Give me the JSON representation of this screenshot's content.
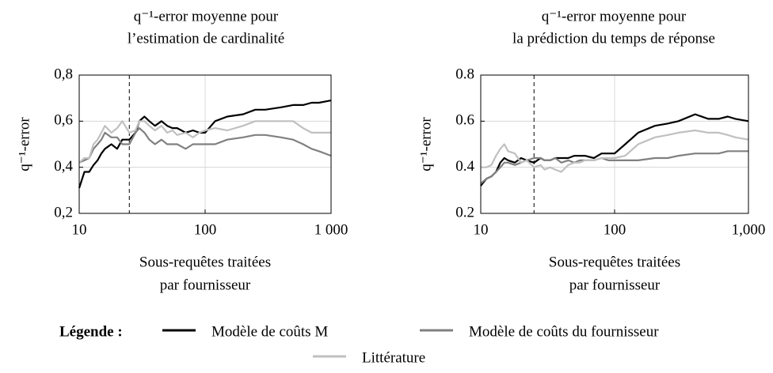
{
  "chart_data": [
    {
      "type": "line",
      "title": [
        "q⁻¹-error moyenne pour",
        "l’estimation de cardinalité"
      ],
      "ylabel": "q⁻¹-error",
      "xlabel": [
        "Sous-requêtes traitées",
        "par fournisseur"
      ],
      "legend_title": "Légende :",
      "xscale": "log",
      "grid": true,
      "vline": 25,
      "xlim": [
        10,
        1000
      ],
      "xticks": [
        10,
        100,
        {
          "value": 1000,
          "label": "1 000"
        }
      ],
      "ylim": [
        0.2,
        0.8
      ],
      "yticks": [
        {
          "value": 0.2,
          "label": "0,2"
        },
        {
          "value": 0.4,
          "label": "0,4"
        },
        {
          "value": 0.6,
          "label": "0,6"
        },
        {
          "value": 0.8,
          "label": "0,8"
        }
      ],
      "x": [
        10,
        11,
        12,
        13,
        14,
        15,
        16,
        18,
        20,
        22,
        25,
        28,
        30,
        33,
        36,
        40,
        45,
        50,
        55,
        60,
        70,
        80,
        90,
        100,
        120,
        150,
        200,
        250,
        300,
        400,
        500,
        600,
        700,
        800,
        1000
      ],
      "series": [
        {
          "name": "Modèle de coûts M",
          "color": "#000000",
          "values": [
            0.31,
            0.38,
            0.38,
            0.41,
            0.43,
            0.46,
            0.48,
            0.5,
            0.48,
            0.52,
            0.52,
            0.55,
            0.6,
            0.62,
            0.6,
            0.58,
            0.6,
            0.58,
            0.57,
            0.57,
            0.55,
            0.56,
            0.55,
            0.55,
            0.6,
            0.62,
            0.63,
            0.65,
            0.65,
            0.66,
            0.67,
            0.67,
            0.68,
            0.68,
            0.69
          ]
        },
        {
          "name": "Modèle de coûts du fournisseur",
          "color": "#808080",
          "values": [
            0.42,
            0.43,
            0.44,
            0.48,
            0.5,
            0.52,
            0.55,
            0.53,
            0.53,
            0.5,
            0.5,
            0.55,
            0.57,
            0.55,
            0.52,
            0.5,
            0.52,
            0.5,
            0.5,
            0.5,
            0.48,
            0.5,
            0.5,
            0.5,
            0.5,
            0.52,
            0.53,
            0.54,
            0.54,
            0.53,
            0.52,
            0.5,
            0.48,
            0.47,
            0.45
          ]
        },
        {
          "name": "Littérature",
          "color": "#c0c0c0",
          "values": [
            0.42,
            0.44,
            0.44,
            0.5,
            0.52,
            0.55,
            0.58,
            0.55,
            0.57,
            0.6,
            0.55,
            0.56,
            0.6,
            0.6,
            0.58,
            0.56,
            0.58,
            0.55,
            0.56,
            0.54,
            0.55,
            0.53,
            0.55,
            0.56,
            0.57,
            0.56,
            0.58,
            0.6,
            0.6,
            0.6,
            0.6,
            0.57,
            0.55,
            0.55,
            0.55
          ]
        }
      ]
    },
    {
      "type": "line",
      "title": [
        "q⁻¹-error moyenne pour",
        "la prédiction du temps de réponse"
      ],
      "ylabel": "q⁻¹-error",
      "xlabel": [
        "Sous-requêtes traitées",
        "par fournisseur"
      ],
      "xscale": "log",
      "grid": true,
      "vline": 25,
      "xlim": [
        10,
        1000
      ],
      "xticks": [
        10,
        100,
        {
          "value": 1000,
          "label": "1,000"
        }
      ],
      "ylim": [
        0.2,
        0.8
      ],
      "yticks": [
        0.2,
        0.4,
        0.6,
        0.8
      ],
      "x": [
        10,
        11,
        12,
        13,
        14,
        15,
        16,
        18,
        20,
        22,
        25,
        28,
        30,
        33,
        36,
        40,
        45,
        50,
        55,
        60,
        70,
        80,
        90,
        100,
        120,
        150,
        200,
        250,
        300,
        400,
        500,
        600,
        700,
        800,
        1000
      ],
      "series": [
        {
          "color": "#000000",
          "values": [
            0.32,
            0.35,
            0.36,
            0.38,
            0.42,
            0.44,
            0.43,
            0.42,
            0.44,
            0.43,
            0.42,
            0.44,
            0.43,
            0.43,
            0.44,
            0.44,
            0.44,
            0.45,
            0.45,
            0.45,
            0.44,
            0.46,
            0.46,
            0.46,
            0.5,
            0.55,
            0.58,
            0.59,
            0.6,
            0.63,
            0.61,
            0.61,
            0.62,
            0.61,
            0.6
          ]
        },
        {
          "color": "#808080",
          "values": [
            0.33,
            0.35,
            0.36,
            0.38,
            0.4,
            0.42,
            0.42,
            0.41,
            0.42,
            0.43,
            0.44,
            0.44,
            0.43,
            0.43,
            0.44,
            0.42,
            0.43,
            0.42,
            0.43,
            0.43,
            0.43,
            0.44,
            0.43,
            0.43,
            0.43,
            0.43,
            0.44,
            0.44,
            0.45,
            0.46,
            0.46,
            0.46,
            0.47,
            0.47,
            0.47
          ]
        },
        {
          "color": "#c0c0c0",
          "values": [
            0.4,
            0.4,
            0.41,
            0.45,
            0.48,
            0.5,
            0.47,
            0.46,
            0.42,
            0.43,
            0.4,
            0.41,
            0.39,
            0.4,
            0.39,
            0.38,
            0.41,
            0.42,
            0.42,
            0.43,
            0.43,
            0.44,
            0.44,
            0.44,
            0.45,
            0.5,
            0.53,
            0.54,
            0.55,
            0.56,
            0.55,
            0.55,
            0.54,
            0.53,
            0.52
          ]
        }
      ]
    }
  ]
}
